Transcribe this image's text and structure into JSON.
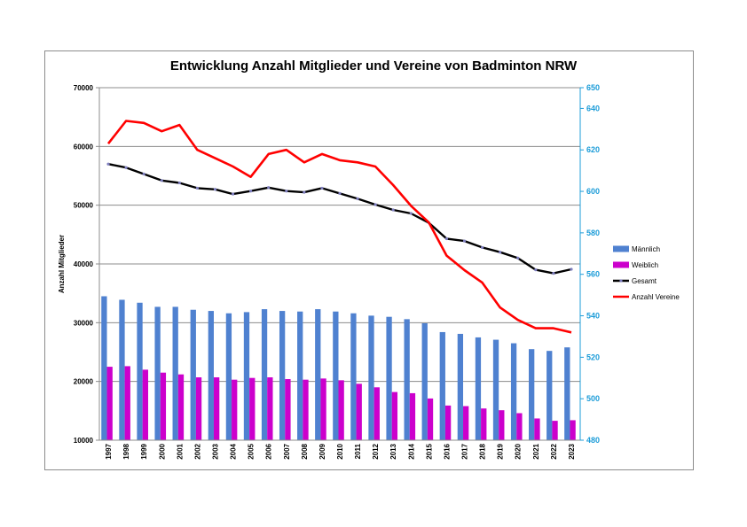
{
  "chart_data": {
    "type": "bar",
    "title": "Entwicklung Anzahl Mitglieder und Vereine von Badminton NRW",
    "ylabel": "Anzahl Mitglieder",
    "xlabel": "",
    "ylim": [
      10000,
      70000
    ],
    "y2lim": [
      480,
      650
    ],
    "y_ticks": [
      "10000",
      "20000",
      "30000",
      "40000",
      "50000",
      "60000",
      "70000"
    ],
    "y2_ticks": [
      "480",
      "500",
      "520",
      "540",
      "560",
      "580",
      "600",
      "620",
      "640",
      "650"
    ],
    "grid": true,
    "legend_position": "right",
    "categories": [
      "1997",
      "1998",
      "1999",
      "2000",
      "2001",
      "2002",
      "2003",
      "2004",
      "2005",
      "2006",
      "2007",
      "2008",
      "2009",
      "2010",
      "2011",
      "2012",
      "2013",
      "2014",
      "2015",
      "2016",
      "2017",
      "2018",
      "2019",
      "2020",
      "2021",
      "2022",
      "2023"
    ],
    "series": [
      {
        "name": "Männlich",
        "kind": "bar",
        "axis": "left",
        "color": "#4f81d0",
        "values": [
          34500,
          33900,
          33400,
          32700,
          32700,
          32200,
          32000,
          31600,
          31800,
          32300,
          32000,
          31900,
          32300,
          31900,
          31600,
          31200,
          31000,
          30600,
          29900,
          28400,
          28100,
          27500,
          27100,
          26500,
          25500,
          25200,
          25800
        ]
      },
      {
        "name": "Weiblich",
        "kind": "bar",
        "axis": "left",
        "color": "#cc00cc",
        "values": [
          22500,
          22600,
          22000,
          21500,
          21200,
          20700,
          20700,
          20300,
          20600,
          20700,
          20400,
          20300,
          20500,
          20200,
          19600,
          19000,
          18200,
          18000,
          17100,
          15900,
          15800,
          15400,
          15100,
          14600,
          13700,
          13300,
          13400
        ]
      },
      {
        "name": "Gesamt",
        "kind": "line",
        "axis": "left",
        "color": "#000000",
        "marker_color": "#7f7fbf",
        "values": [
          57000,
          56400,
          55300,
          54200,
          53800,
          52900,
          52700,
          51900,
          52400,
          53000,
          52400,
          52200,
          52900,
          52000,
          51100,
          50100,
          49200,
          48600,
          47000,
          44300,
          43900,
          42800,
          42000,
          41000,
          39000,
          38400,
          39100
        ]
      },
      {
        "name": "Anzahl Vereine",
        "kind": "line",
        "axis": "right",
        "color": "#ff0000",
        "values": [
          623,
          634,
          633,
          629,
          632,
          620,
          616,
          612,
          607,
          618,
          620,
          614,
          618,
          615,
          614,
          612,
          603,
          593,
          585,
          569,
          562,
          556,
          544,
          538,
          534,
          534,
          532
        ]
      }
    ]
  }
}
